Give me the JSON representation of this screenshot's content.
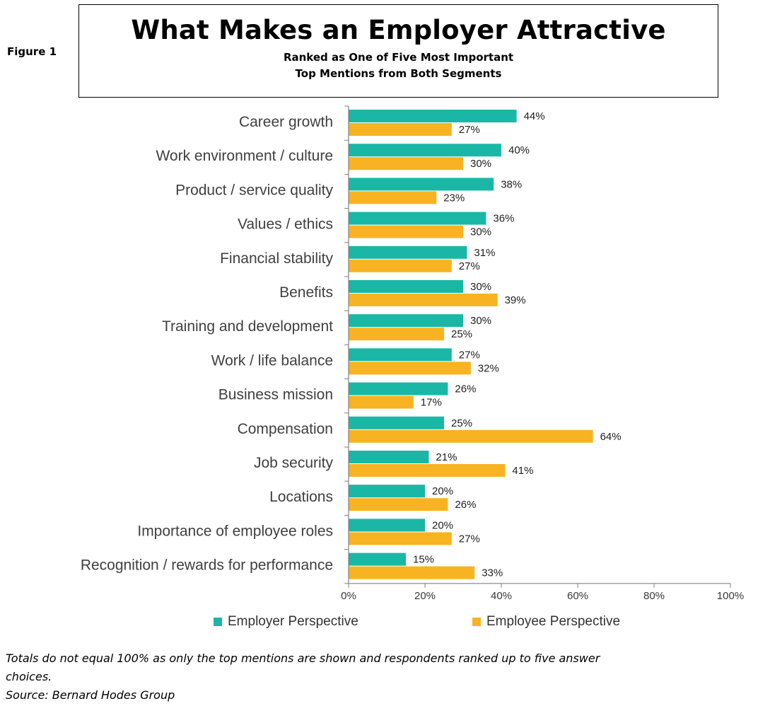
{
  "figure_label": "Figure 1",
  "title": "What Makes an Employer Attractive",
  "subtitle1": "Ranked as One of Five Most Important",
  "subtitle2": "Top Mentions from Both Segments",
  "colors": {
    "employer": "#1bb7a6",
    "employee": "#f8b323",
    "axis": "#808080"
  },
  "chart_data": {
    "type": "bar",
    "orientation": "horizontal",
    "title": "What Makes an Employer Attractive",
    "categories": [
      "Career growth",
      "Work environment / culture",
      "Product / service quality",
      "Values / ethics",
      "Financial stability",
      "Benefits",
      "Training and development",
      "Work / life balance",
      "Business mission",
      "Compensation",
      "Job security",
      "Locations",
      "Importance of employee roles",
      "Recognition / rewards for performance"
    ],
    "series": [
      {
        "name": "Employer Perspective",
        "values": [
          44,
          40,
          38,
          36,
          31,
          30,
          30,
          27,
          26,
          25,
          21,
          20,
          20,
          15
        ]
      },
      {
        "name": "Employee Perspective",
        "values": [
          27,
          30,
          23,
          30,
          27,
          39,
          25,
          32,
          17,
          64,
          41,
          26,
          27,
          33
        ]
      }
    ],
    "xlim": [
      0,
      100
    ],
    "xticks": [
      "0%",
      "20%",
      "40%",
      "60%",
      "80%",
      "100%"
    ],
    "value_suffix": "%",
    "legend_position": "bottom"
  },
  "footnote1": "Totals do not equal 100% as only the top mentions are shown and respondents ranked up to five answer",
  "footnote2": "choices.",
  "source": "Source: Bernard Hodes Group"
}
